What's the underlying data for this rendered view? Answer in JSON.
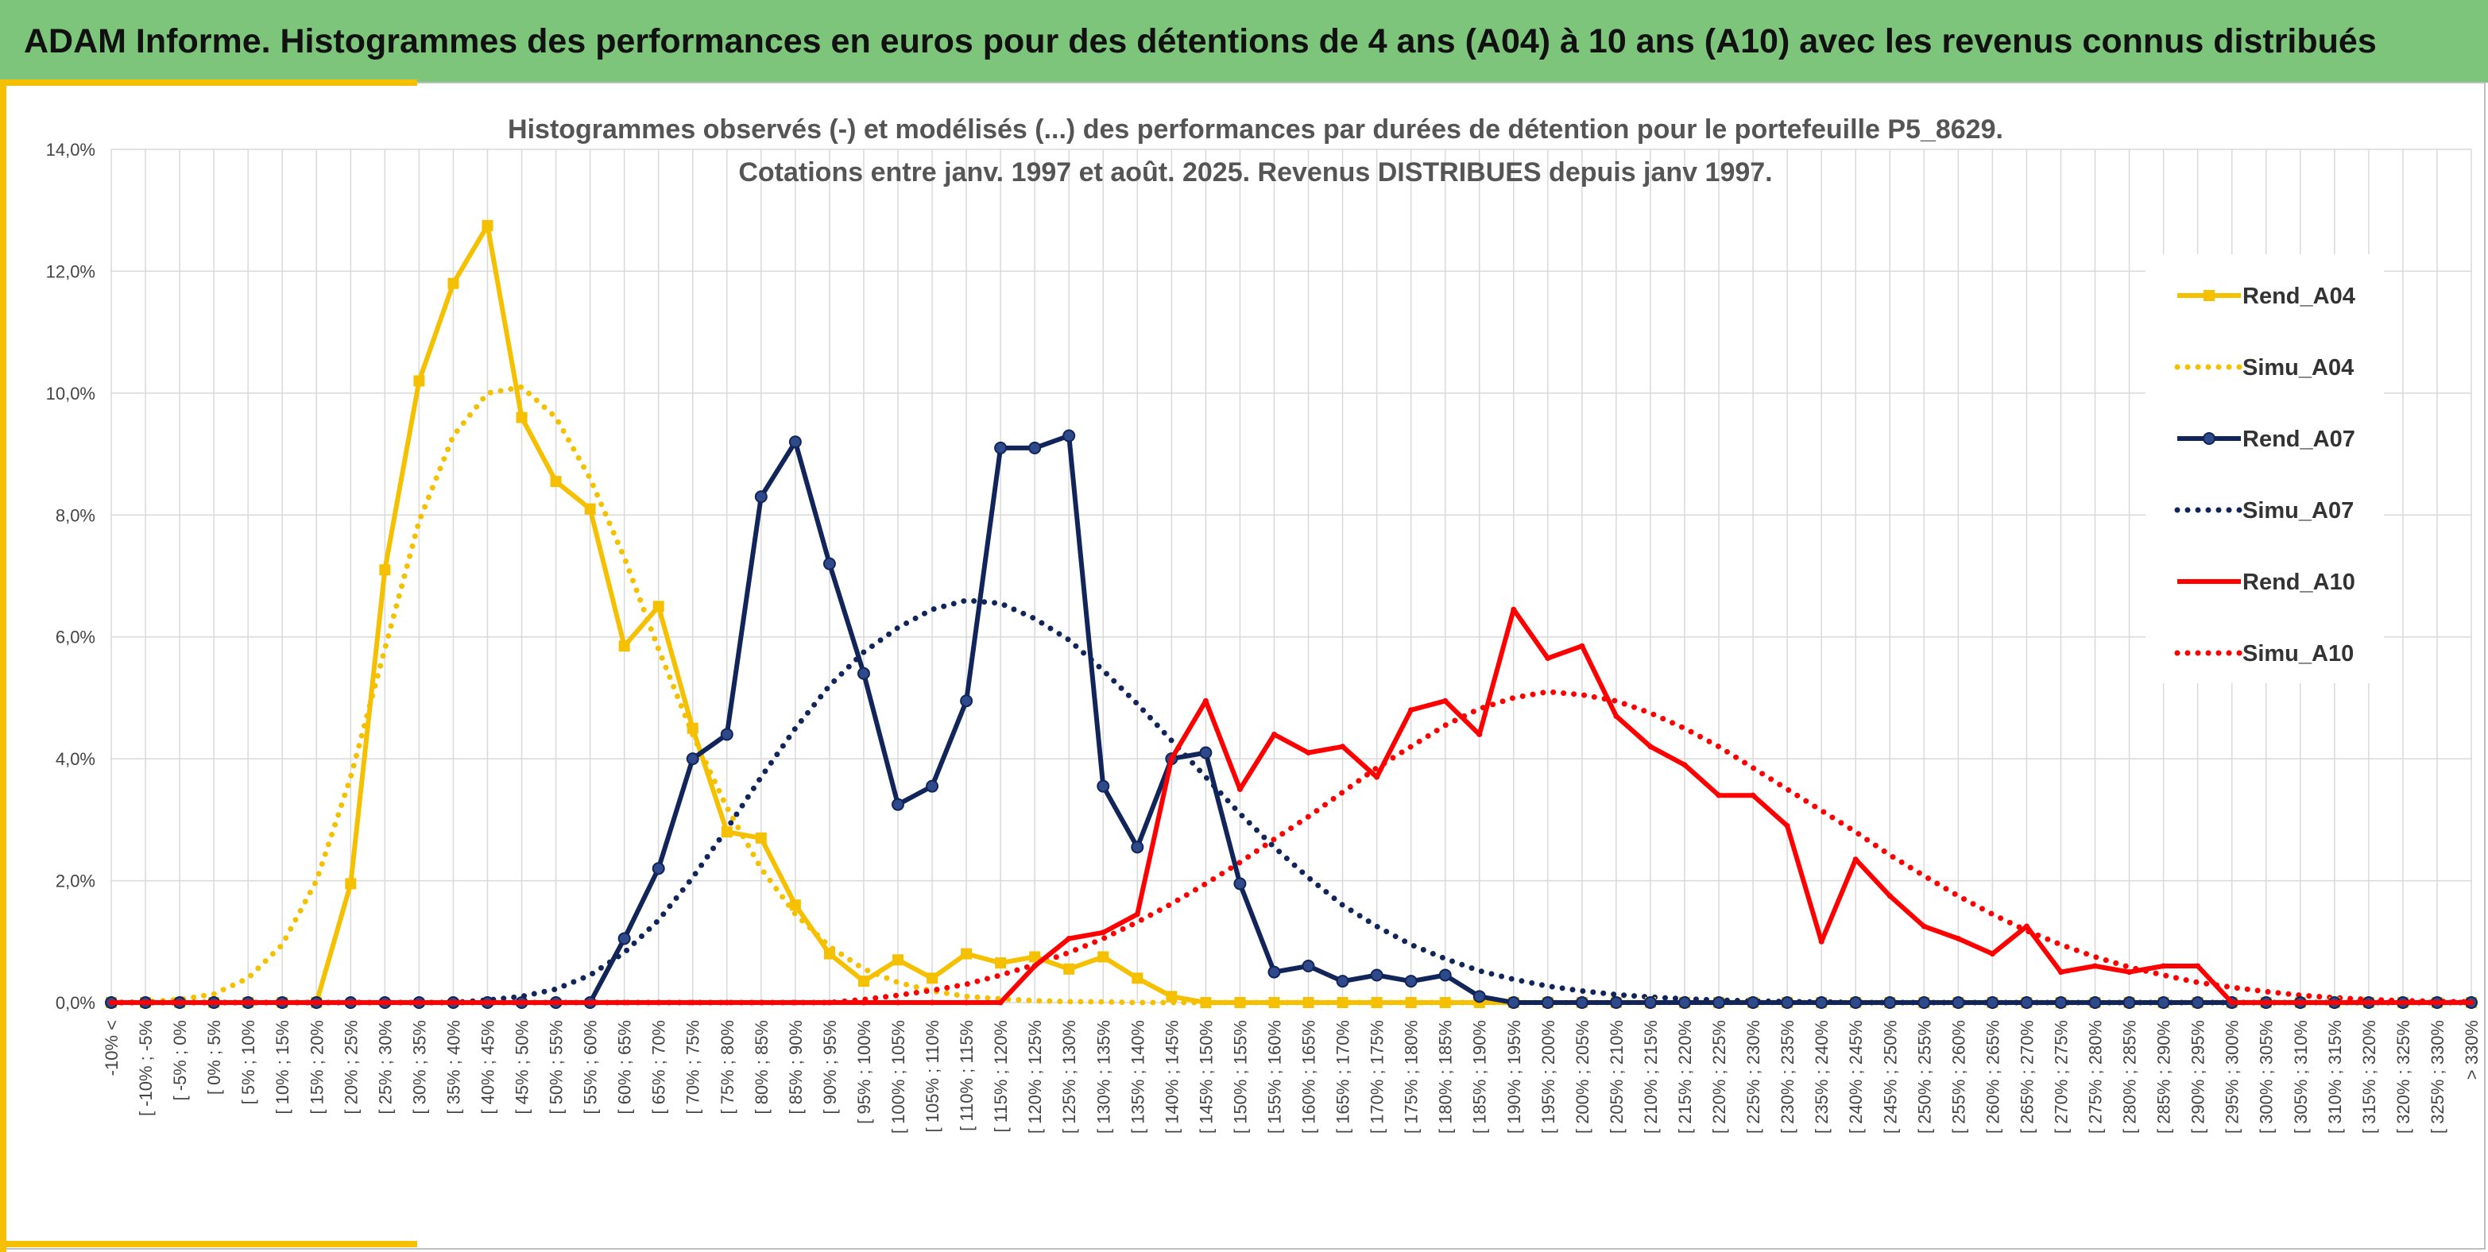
{
  "page": {
    "title": "ADAM Informe. Histogrammes des performances en euros pour des détentions de 4 ans (A04) à 10 ans (A10) avec les revenus connus distribués"
  },
  "colors": {
    "banner": "#7cc57b",
    "A04": "#f5c000",
    "A07": "#12255a",
    "A10": "#ff0000",
    "grid": "#d9d9d9",
    "accent_bar": "#f5c000"
  },
  "chart_data": {
    "type": "line",
    "title_lines": [
      "Histogrammes observés (-) et modélisés (...) des performances par durées de détention pour le portefeuille P5_8629.",
      "Cotations entre janv. 1997 et août. 2025. Revenus DISTRIBUES depuis janv 1997."
    ],
    "ylim": [
      0,
      14
    ],
    "yticks": [
      "0,0%",
      "2,0%",
      "4,0%",
      "6,0%",
      "8,0%",
      "10,0%",
      "12,0%",
      "14,0%"
    ],
    "grid": true,
    "legend_position": "right",
    "categories": [
      "-10% <",
      "[ -10% ; -5%",
      "[ -5% ; 0%",
      "[ 0% ; 5%",
      "[ 5% ; 10%",
      "[ 10% ; 15%",
      "[ 15% ; 20%",
      "[ 20% ; 25%",
      "[ 25% ; 30%",
      "[ 30% ; 35%",
      "[ 35% ; 40%",
      "[ 40% ; 45%",
      "[ 45% ; 50%",
      "[ 50% ; 55%",
      "[ 55% ; 60%",
      "[ 60% ; 65%",
      "[ 65% ; 70%",
      "[ 70% ; 75%",
      "[ 75% ; 80%",
      "[ 80% ; 85%",
      "[ 85% ; 90%",
      "[ 90% ; 95%",
      "[ 95% ; 100%",
      "[ 100% ; 105%",
      "[ 105% ; 110%",
      "[ 110% ; 115%",
      "[ 115% ; 120%",
      "[ 120% ; 125%",
      "[ 125% ; 130%",
      "[ 130% ; 135%",
      "[ 135% ; 140%",
      "[ 140% ; 145%",
      "[ 145% ; 150%",
      "[ 150% ; 155%",
      "[ 155% ; 160%",
      "[ 160% ; 165%",
      "[ 165% ; 170%",
      "[ 170% ; 175%",
      "[ 175% ; 180%",
      "[ 180% ; 185%",
      "[ 185% ; 190%",
      "[ 190% ; 195%",
      "[ 195% ; 200%",
      "[ 200% ; 205%",
      "[ 205% ; 210%",
      "[ 210% ; 215%",
      "[ 215% ; 220%",
      "[ 220% ; 225%",
      "[ 225% ; 230%",
      "[ 230% ; 235%",
      "[ 235% ; 240%",
      "[ 240% ; 245%",
      "[ 245% ; 250%",
      "[ 250% ; 255%",
      "[ 255% ; 260%",
      "[ 260% ; 265%",
      "[ 265% ; 270%",
      "[ 270% ; 275%",
      "[ 275% ; 280%",
      "[ 280% ; 285%",
      "[ 285% ; 290%",
      "[ 290% ; 295%",
      "[ 295% ; 300%",
      "[ 300% ; 305%",
      "[ 305% ; 310%",
      "[ 310% ; 315%",
      "[ 315% ; 320%",
      "[ 320% ; 325%",
      "[ 325% ; 330%",
      "> 330%"
    ],
    "series": [
      {
        "name": "Rend_A04",
        "key": "A04",
        "style": "solid",
        "marker": "square",
        "values": [
          0,
          0,
          0,
          0,
          0,
          0,
          0,
          1.95,
          7.1,
          10.2,
          11.8,
          12.75,
          9.6,
          8.55,
          8.1,
          5.85,
          6.5,
          4.5,
          2.8,
          2.7,
          1.6,
          0.8,
          0.35,
          0.7,
          0.4,
          0.8,
          0.65,
          0.75,
          0.55,
          0.75,
          0.4,
          0.1,
          0,
          0,
          0,
          0,
          0,
          0,
          0,
          0,
          0,
          0,
          0,
          0,
          0,
          0,
          0,
          0,
          0,
          0,
          0,
          0,
          0,
          0,
          0,
          0,
          0,
          0,
          0,
          0,
          0,
          0,
          0,
          0,
          0,
          0,
          0,
          0,
          0,
          0
        ]
      },
      {
        "name": "Simu_A04",
        "key": "A04",
        "style": "dotted",
        "values": [
          0,
          0.01,
          0.05,
          0.14,
          0.4,
          0.95,
          2.0,
          3.7,
          5.8,
          7.9,
          9.3,
          10.0,
          10.1,
          9.6,
          8.6,
          7.3,
          5.8,
          4.4,
          3.2,
          2.2,
          1.45,
          0.92,
          0.55,
          0.33,
          0.19,
          0.1,
          0.06,
          0.03,
          0.015,
          0.01,
          0,
          0,
          0,
          0,
          0,
          0,
          0,
          0,
          0,
          0,
          0,
          0,
          0,
          0,
          0,
          0,
          0,
          0,
          0,
          0,
          0,
          0,
          0,
          0,
          0,
          0,
          0,
          0,
          0,
          0,
          0,
          0,
          0,
          0,
          0,
          0,
          0,
          0,
          0,
          0
        ]
      },
      {
        "name": "Rend_A07",
        "key": "A07",
        "style": "solid",
        "marker": "circle",
        "values": [
          0,
          0,
          0,
          0,
          0,
          0,
          0,
          0,
          0,
          0,
          0,
          0,
          0,
          0,
          0,
          1.05,
          2.2,
          4.0,
          4.4,
          8.3,
          9.2,
          7.2,
          5.4,
          3.25,
          3.55,
          4.95,
          9.1,
          9.1,
          9.3,
          3.55,
          2.55,
          4.0,
          4.1,
          1.95,
          0.5,
          0.6,
          0.35,
          0.45,
          0.35,
          0.45,
          0.1,
          0,
          0,
          0,
          0,
          0,
          0,
          0,
          0,
          0,
          0,
          0,
          0,
          0,
          0,
          0,
          0,
          0,
          0,
          0,
          0,
          0,
          0,
          0,
          0,
          0,
          0,
          0,
          0,
          0
        ]
      },
      {
        "name": "Simu_A07",
        "key": "A07",
        "style": "dotted",
        "values": [
          0,
          0,
          0,
          0,
          0,
          0,
          0,
          0,
          0,
          0,
          0,
          0.04,
          0.1,
          0.22,
          0.45,
          0.82,
          1.35,
          2.05,
          2.85,
          3.7,
          4.5,
          5.2,
          5.75,
          6.15,
          6.45,
          6.6,
          6.55,
          6.3,
          5.95,
          5.45,
          4.9,
          4.3,
          3.7,
          3.1,
          2.55,
          2.05,
          1.6,
          1.25,
          0.95,
          0.72,
          0.52,
          0.38,
          0.27,
          0.19,
          0.13,
          0.09,
          0.06,
          0.04,
          0.025,
          0.015,
          0.01,
          0,
          0,
          0,
          0,
          0,
          0,
          0,
          0,
          0,
          0,
          0,
          0,
          0,
          0,
          0,
          0,
          0,
          0,
          0
        ]
      },
      {
        "name": "Rend_A10",
        "key": "A10",
        "style": "solid",
        "marker": "none",
        "values": [
          0,
          0,
          0,
          0,
          0,
          0,
          0,
          0,
          0,
          0,
          0,
          0,
          0,
          0,
          0,
          0,
          0,
          0,
          0,
          0,
          0,
          0,
          0,
          0,
          0,
          0,
          0,
          0.6,
          1.05,
          1.15,
          1.45,
          4.0,
          4.95,
          3.5,
          4.4,
          4.1,
          4.2,
          3.7,
          4.8,
          4.95,
          4.4,
          6.45,
          5.65,
          5.85,
          4.7,
          4.2,
          3.9,
          3.4,
          3.4,
          2.9,
          1.0,
          2.35,
          1.75,
          1.25,
          1.05,
          0.8,
          1.25,
          0.5,
          0.6,
          0.5,
          0.6,
          0.6,
          0,
          0,
          0,
          0,
          0,
          0,
          0,
          0
        ]
      },
      {
        "name": "Simu_A10",
        "key": "A10",
        "style": "dotted",
        "values": [
          0,
          0,
          0,
          0,
          0,
          0,
          0,
          0,
          0,
          0,
          0,
          0,
          0,
          0,
          0,
          0,
          0,
          0,
          0,
          0,
          0,
          0,
          0.05,
          0.12,
          0.2,
          0.3,
          0.45,
          0.62,
          0.82,
          1.05,
          1.32,
          1.62,
          1.95,
          2.3,
          2.68,
          3.05,
          3.45,
          3.85,
          4.2,
          4.55,
          4.82,
          5.0,
          5.1,
          5.05,
          4.95,
          4.75,
          4.5,
          4.2,
          3.85,
          3.5,
          3.15,
          2.8,
          2.42,
          2.08,
          1.75,
          1.45,
          1.18,
          0.95,
          0.75,
          0.58,
          0.45,
          0.33,
          0.25,
          0.18,
          0.12,
          0.08,
          0.05,
          0.03,
          0.02,
          0.01
        ]
      }
    ]
  }
}
